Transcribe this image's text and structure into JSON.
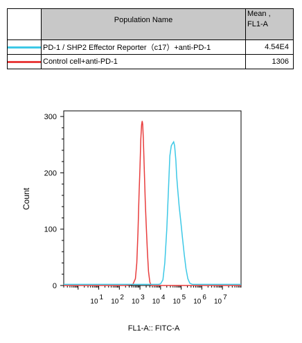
{
  "table": {
    "header_name": "Population Name",
    "header_mean_line1": "Mean ,",
    "header_mean_line2": "FL1-A",
    "rows": [
      {
        "name": "PD-1 / SHP2 Effector Reporter（c17）+anti-PD-1",
        "mean": "4.54E4",
        "color": "#3cc8e6"
      },
      {
        "name": "Control cell+anti-PD-1",
        "mean": "1306",
        "color": "#e83c3c"
      }
    ]
  },
  "chart_data": {
    "type": "line",
    "xlabel": "FL1-A:: FITC-A",
    "ylabel": "Count",
    "x_scale": "log",
    "xlim": [
      0.2,
      80000000
    ],
    "ylim": [
      0,
      310
    ],
    "yticks": [
      0,
      100,
      200,
      300
    ],
    "xticks": [
      {
        "value": 10,
        "base": "10",
        "exp": "1"
      },
      {
        "value": 100,
        "base": "10",
        "exp": "2"
      },
      {
        "value": 1000,
        "base": "10",
        "exp": "3"
      },
      {
        "value": 10000,
        "base": "10",
        "exp": "4"
      },
      {
        "value": 100000,
        "base": "10",
        "exp": "5"
      },
      {
        "value": 1000000,
        "base": "10",
        "exp": "6"
      },
      {
        "value": 10000000,
        "base": "10",
        "exp": "7"
      }
    ],
    "series": [
      {
        "name": "Control cell+anti-PD-1",
        "color": "#e83c3c",
        "points": [
          [
            0.2,
            0
          ],
          [
            200,
            0
          ],
          [
            450,
            2
          ],
          [
            600,
            12
          ],
          [
            700,
            40
          ],
          [
            800,
            95
          ],
          [
            900,
            160
          ],
          [
            1000,
            210
          ],
          [
            1100,
            260
          ],
          [
            1200,
            285
          ],
          [
            1280,
            292
          ],
          [
            1350,
            286
          ],
          [
            1450,
            262
          ],
          [
            1600,
            210
          ],
          [
            1800,
            150
          ],
          [
            2000,
            110
          ],
          [
            2300,
            60
          ],
          [
            2600,
            25
          ],
          [
            3000,
            6
          ],
          [
            3500,
            0
          ],
          [
            80000000,
            0
          ]
        ]
      },
      {
        "name": "PD-1 / SHP2 Effector Reporter（c17）+anti-PD-1",
        "color": "#3cc8e6",
        "points": [
          [
            0.2,
            2
          ],
          [
            8000,
            2
          ],
          [
            10000,
            3
          ],
          [
            13000,
            10
          ],
          [
            16000,
            40
          ],
          [
            20000,
            100
          ],
          [
            24000,
            170
          ],
          [
            28000,
            230
          ],
          [
            33000,
            248
          ],
          [
            38000,
            252
          ],
          [
            43000,
            255
          ],
          [
            48000,
            248
          ],
          [
            55000,
            222
          ],
          [
            60000,
            195
          ],
          [
            68000,
            170
          ],
          [
            80000,
            140
          ],
          [
            95000,
            115
          ],
          [
            115000,
            85
          ],
          [
            140000,
            55
          ],
          [
            170000,
            30
          ],
          [
            210000,
            12
          ],
          [
            260000,
            4
          ],
          [
            350000,
            2
          ],
          [
            80000000,
            2
          ]
        ]
      }
    ]
  }
}
